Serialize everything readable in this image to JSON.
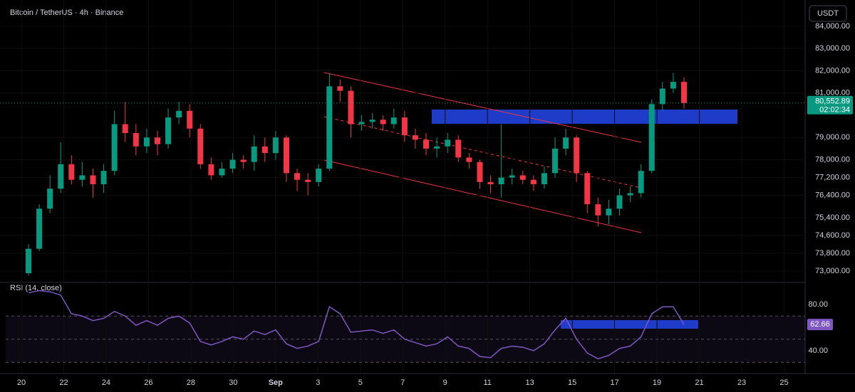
{
  "chart_data": {
    "type": "candlestick",
    "title": "Bitcoin / TetherUS · 4h · Binance",
    "currency": "USDT",
    "categories": [
      "20",
      "22",
      "24",
      "26",
      "28",
      "30",
      "Sep",
      "3",
      "5",
      "7",
      "9",
      "11",
      "13",
      "15",
      "17",
      "19",
      "21",
      "23",
      "25"
    ],
    "open": [
      72900,
      74000,
      75800,
      76700,
      77800,
      77100,
      77300,
      76900,
      77500,
      79600,
      79200,
      78600,
      79000,
      78700,
      79900,
      80200,
      79400,
      77800,
      77300,
      77600,
      78000,
      77900,
      78600,
      78300,
      79000,
      77400,
      77100,
      77000,
      77600,
      81300,
      81100,
      79600,
      79700,
      79800,
      79600,
      79900,
      79100,
      78900,
      78500,
      78600,
      78900,
      78100,
      77900,
      77000,
      76900,
      77200,
      77300,
      77100,
      76900,
      77400,
      78500,
      79000,
      77400,
      76000,
      75500,
      75800,
      76400,
      76500,
      77500,
      80500,
      81200,
      81500
    ],
    "high": [
      74200,
      76000,
      77300,
      78800,
      78200,
      77900,
      77600,
      77800,
      80200,
      80600,
      79600,
      79400,
      79300,
      80300,
      80600,
      80500,
      79600,
      78100,
      77900,
      78300,
      78200,
      79100,
      79000,
      79300,
      79100,
      77600,
      77400,
      77800,
      81900,
      81600,
      81300,
      80000,
      80100,
      80000,
      80300,
      80200,
      79400,
      79200,
      79000,
      79200,
      79100,
      78300,
      78000,
      77300,
      79600,
      77600,
      77500,
      77300,
      77700,
      79000,
      79400,
      79100,
      77500,
      76300,
      76200,
      76700,
      76800,
      77800,
      80700,
      81500,
      81900,
      81700
    ],
    "low": [
      72800,
      73900,
      75600,
      76500,
      76900,
      76800,
      76300,
      76500,
      77300,
      78800,
      78200,
      78300,
      78200,
      78500,
      79600,
      79000,
      77600,
      77100,
      77200,
      77400,
      77600,
      77500,
      77900,
      78000,
      77000,
      76600,
      76400,
      76800,
      77500,
      80600,
      79000,
      79300,
      79400,
      79300,
      79400,
      78800,
      78500,
      78200,
      78100,
      78300,
      77900,
      77600,
      76700,
      76500,
      76300,
      76900,
      76900,
      76600,
      76700,
      77200,
      78200,
      77000,
      75600,
      75000,
      75100,
      75500,
      76100,
      76300,
      77400,
      80200,
      81000,
      80300
    ],
    "close": [
      74000,
      75800,
      76700,
      77800,
      77100,
      77300,
      76900,
      77500,
      79600,
      79200,
      78600,
      79000,
      78700,
      79900,
      80200,
      79400,
      77800,
      77300,
      77600,
      78000,
      77900,
      78600,
      78300,
      79000,
      77400,
      77100,
      77000,
      77600,
      81300,
      81100,
      79600,
      79700,
      79800,
      79600,
      79900,
      79100,
      78900,
      78500,
      78600,
      78900,
      78100,
      77900,
      77000,
      76900,
      77200,
      77300,
      77100,
      76900,
      77400,
      78500,
      79000,
      77400,
      76000,
      75500,
      75800,
      76400,
      76500,
      77500,
      80500,
      81200,
      81500,
      80550
    ],
    "up_color": "#089981",
    "down_color": "#f23645",
    "ylim": [
      72550,
      85020
    ],
    "yticks": [
      {
        "value": 73000,
        "label": "73,000.00"
      },
      {
        "value": 73800,
        "label": "73,800.00"
      },
      {
        "value": 74600,
        "label": "74,600.00"
      },
      {
        "value": 75400,
        "label": "75,400.00"
      },
      {
        "value": 76400,
        "label": "76,400.00"
      },
      {
        "value": 77200,
        "label": "77,200.00"
      },
      {
        "value": 78000,
        "label": "78,000.00"
      },
      {
        "value": 79000,
        "label": "79,000.00"
      },
      {
        "value": 81000,
        "label": "81,000.00"
      },
      {
        "value": 82000,
        "label": "82,000.00"
      },
      {
        "value": 83000,
        "label": "83,000.00"
      },
      {
        "value": 84000,
        "label": "84,000.00"
      }
    ],
    "last_price": {
      "value": 80552.89,
      "label": "80,552.89"
    },
    "countdown": "02:02:34",
    "rsi": {
      "title": "RSI (14, close)",
      "color": "#7e57c2",
      "values": [
        90,
        92,
        91,
        88,
        72,
        70,
        66,
        68,
        74,
        70,
        62,
        66,
        62,
        68,
        70,
        64,
        48,
        45,
        48,
        52,
        50,
        57,
        54,
        58,
        46,
        42,
        44,
        48,
        78,
        72,
        56,
        57,
        58,
        55,
        58,
        50,
        47,
        44,
        46,
        52,
        44,
        42,
        35,
        34,
        42,
        44,
        43,
        40,
        46,
        58,
        68,
        50,
        38,
        33,
        36,
        42,
        44,
        52,
        72,
        78,
        78,
        62.66
      ],
      "ylim": [
        24.6,
        97.2
      ],
      "yticks": [
        {
          "value": 40,
          "label": "40.00"
        },
        {
          "value": 80,
          "label": "80.00"
        }
      ],
      "last": 62.66
    }
  }
}
